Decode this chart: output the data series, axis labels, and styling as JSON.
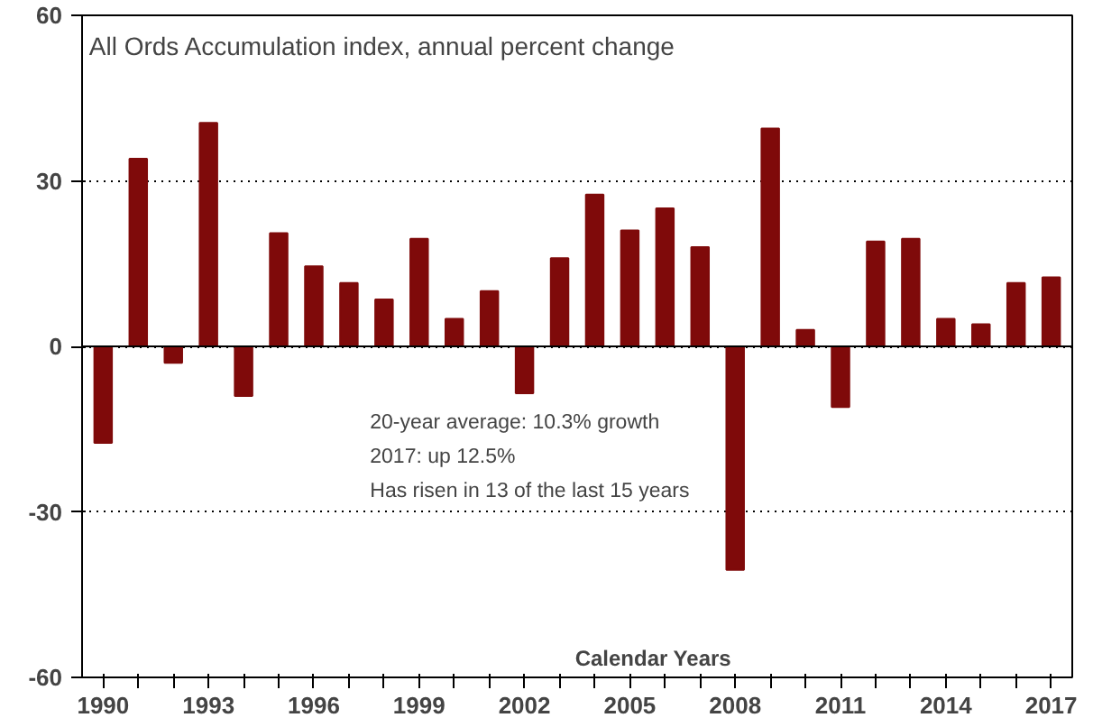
{
  "chart_data": {
    "type": "bar",
    "title": "All Ords Accumulation index, annual percent change",
    "xlabel": "Calendar Years",
    "categories": [
      "1990",
      null,
      null,
      "1993",
      null,
      null,
      "1996",
      null,
      null,
      "1999",
      null,
      null,
      "2002",
      null,
      null,
      "2005",
      null,
      null,
      "2008",
      null,
      null,
      "2011",
      null,
      null,
      "2014",
      null,
      null,
      "2017"
    ],
    "values": [
      -17.5,
      34,
      -3,
      40.5,
      -9,
      20.5,
      14.5,
      11.5,
      8.5,
      19.5,
      5,
      10,
      -8.5,
      16,
      27.5,
      21,
      25,
      18,
      -40.5,
      39.5,
      3,
      -11,
      19,
      19.5,
      5,
      4,
      11.5,
      12.5
    ],
    "color": "#7f0a0a",
    "ylim": [
      -60,
      60
    ],
    "yticks": [
      -60,
      -30,
      0,
      30,
      60
    ],
    "grid": "y",
    "annotations": [
      "20-year average: 10.3% growth",
      "2017: up 12.5%",
      "Has risen in 13 of the last 15 years"
    ]
  }
}
